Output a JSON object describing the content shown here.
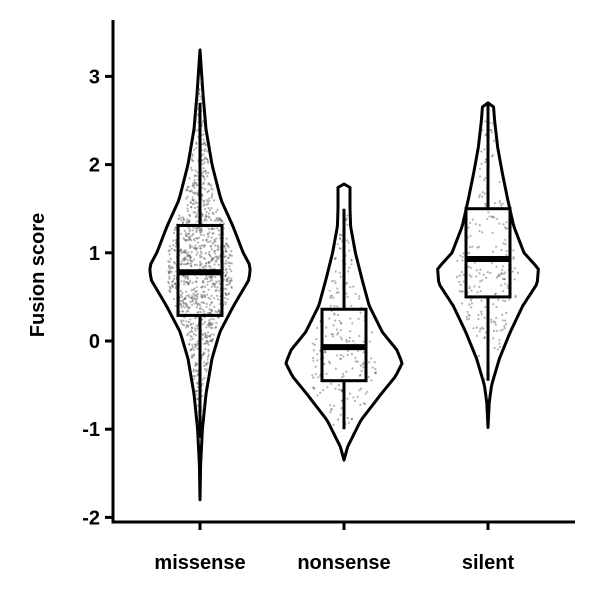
{
  "chart_data": {
    "type": "violin",
    "title": "",
    "xlabel": "",
    "ylabel": "Fusion score",
    "ylim": [
      -2.1,
      3.6
    ],
    "yticks": [
      -2,
      -1,
      0,
      1,
      2,
      3
    ],
    "yticklabels": [
      "-2",
      "-1",
      "0",
      "1",
      "2",
      "3"
    ],
    "categories": [
      "missense",
      "nonsense",
      "silent"
    ],
    "grid": false,
    "legend": "none",
    "violin_color": "#000000",
    "point_color": "#555555",
    "groups": [
      {
        "name": "missense",
        "box": {
          "q1": 0.29,
          "median": 0.78,
          "q3": 1.31,
          "whisker_low": -1.1,
          "whisker_high": 2.7
        },
        "range": [
          -1.8,
          3.3
        ],
        "points_range": [
          -1.1,
          2.95
        ],
        "n_points": 1100,
        "density": [
          [
            -1.8,
            0.0
          ],
          [
            -1.4,
            0.01
          ],
          [
            -1.0,
            0.04
          ],
          [
            -0.6,
            0.1
          ],
          [
            -0.2,
            0.2
          ],
          [
            0.1,
            0.33
          ],
          [
            0.4,
            0.56
          ],
          [
            0.7,
            0.82
          ],
          [
            0.85,
            0.84
          ],
          [
            1.0,
            0.72
          ],
          [
            1.3,
            0.55
          ],
          [
            1.6,
            0.35
          ],
          [
            2.0,
            0.2
          ],
          [
            2.4,
            0.1
          ],
          [
            2.8,
            0.05
          ],
          [
            3.1,
            0.02
          ],
          [
            3.3,
            0.0
          ]
        ]
      },
      {
        "name": "nonsense",
        "box": {
          "q1": -0.45,
          "median": -0.07,
          "q3": 0.36,
          "whisker_low": -1.0,
          "whisker_high": 1.5
        },
        "range": [
          -1.35,
          1.78
        ],
        "points_range": [
          -1.0,
          1.5
        ],
        "n_points": 220,
        "density": [
          [
            -1.35,
            0.0
          ],
          [
            -1.2,
            0.06
          ],
          [
            -0.9,
            0.28
          ],
          [
            -0.6,
            0.62
          ],
          [
            -0.4,
            0.86
          ],
          [
            -0.25,
            0.97
          ],
          [
            -0.1,
            0.88
          ],
          [
            0.1,
            0.64
          ],
          [
            0.4,
            0.42
          ],
          [
            0.7,
            0.3
          ],
          [
            1.0,
            0.19
          ],
          [
            1.3,
            0.11
          ],
          [
            1.5,
            0.1
          ],
          [
            1.75,
            0.1
          ],
          [
            1.78,
            0.0
          ]
        ]
      },
      {
        "name": "silent",
        "box": {
          "q1": 0.5,
          "median": 0.93,
          "q3": 1.5,
          "whisker_low": -0.45,
          "whisker_high": 2.7
        },
        "range": [
          -0.98,
          2.7
        ],
        "points_range": [
          -0.45,
          2.6
        ],
        "n_points": 230,
        "density": [
          [
            -0.98,
            0.0
          ],
          [
            -0.7,
            0.02
          ],
          [
            -0.5,
            0.06
          ],
          [
            -0.2,
            0.19
          ],
          [
            0.1,
            0.37
          ],
          [
            0.4,
            0.58
          ],
          [
            0.65,
            0.82
          ],
          [
            0.82,
            0.84
          ],
          [
            1.0,
            0.6
          ],
          [
            1.3,
            0.43
          ],
          [
            1.6,
            0.33
          ],
          [
            1.9,
            0.24
          ],
          [
            2.2,
            0.16
          ],
          [
            2.5,
            0.11
          ],
          [
            2.68,
            0.09
          ],
          [
            2.7,
            0.0
          ]
        ]
      }
    ]
  }
}
